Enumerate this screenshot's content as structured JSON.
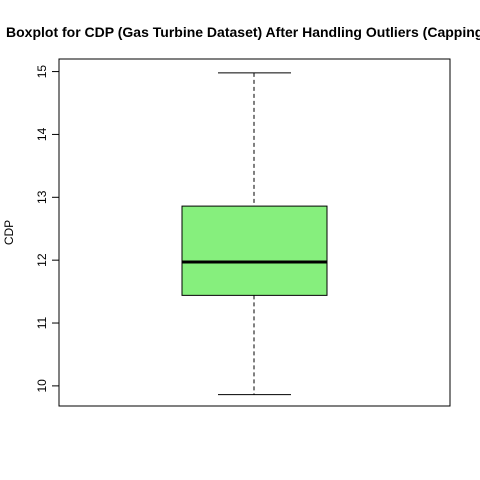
{
  "chart_data": {
    "type": "boxplot",
    "title": "Boxplot for CDP (Gas Turbine Dataset) After Handling Outliers (Capping)",
    "xlabel": "",
    "ylabel": "CDP",
    "ylim": [
      9.68,
      15.2
    ],
    "yticks": [
      10,
      11,
      12,
      13,
      14,
      15
    ],
    "grid": false,
    "box_color": "#86EF7D",
    "series": [
      {
        "min": 9.86,
        "q1": 11.44,
        "median": 11.97,
        "q3": 12.86,
        "max": 14.98
      }
    ]
  }
}
